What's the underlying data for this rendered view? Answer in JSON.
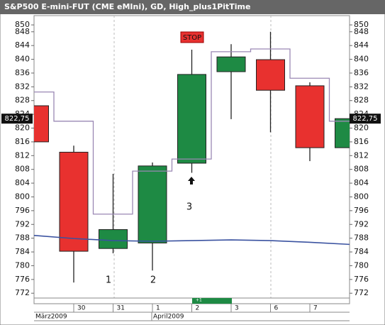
{
  "chart_data": {
    "type": "candlestick",
    "title": "S&P500 E-mini-FUT (CME eMIni), GD, High_plus1PitTime",
    "categories": [
      null,
      "30",
      "31",
      "1",
      "2",
      "3",
      "6",
      "7",
      null
    ],
    "months": [
      "März2009",
      "April2009"
    ],
    "open": [
      826.5,
      813,
      785,
      786.6,
      809.8,
      836.4,
      839.9,
      832.3,
      814.3
    ],
    "high": [
      null,
      814.9,
      806.7,
      810,
      842.8,
      844.4,
      848,
      833.3,
      null
    ],
    "low": [
      null,
      775.1,
      783.6,
      778.6,
      807,
      822.6,
      818.8,
      810.4,
      null
    ],
    "close": [
      816,
      784.2,
      790.5,
      809,
      835.6,
      840.7,
      831,
      814.3,
      822.75
    ],
    "up_color": "#1e8a44",
    "down_color": "#e8312f",
    "series": [
      {
        "color": "#9a88b4",
        "values": [
          830.5,
          822,
          795,
          807.5,
          811,
          842.2,
          843,
          834.5,
          822
        ],
        "style": "step"
      },
      {
        "color": "#3a52a0",
        "values": [
          788.8,
          787.9,
          787.3,
          787.1,
          787.3,
          787.5,
          787.3,
          786.8,
          786.2
        ],
        "style": "line"
      }
    ],
    "last_price": {
      "value": 822.75,
      "label": "822,75"
    },
    "stop_label": "STOP",
    "wave_labels": [
      "1",
      "2",
      "3"
    ],
    "bottom_marker": "+1",
    "ylim": [
      770.6,
      852.7
    ],
    "yticks": [
      772,
      776,
      780,
      784,
      788,
      792,
      796,
      800,
      804,
      808,
      812,
      816,
      820,
      824,
      828,
      832,
      836,
      840,
      844,
      848,
      850
    ]
  }
}
